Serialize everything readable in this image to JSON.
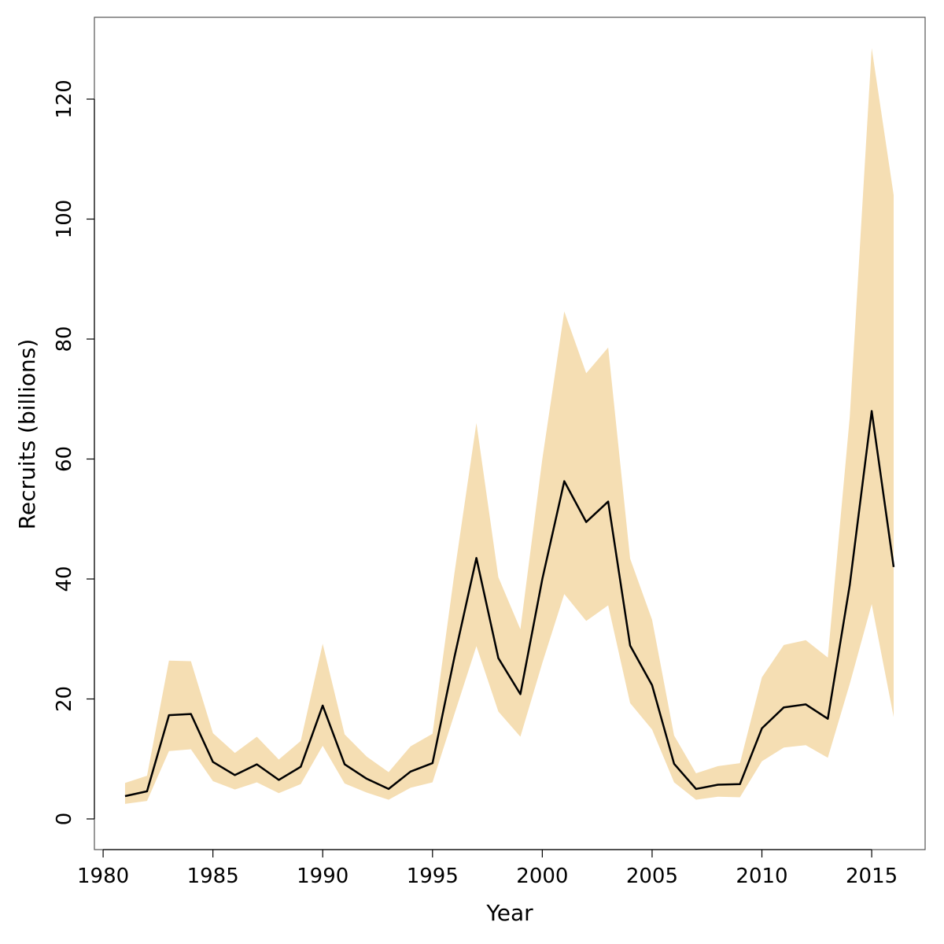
{
  "chart_data": {
    "type": "line",
    "title": "",
    "xlabel": "Year",
    "ylabel": "Recruits (billions)",
    "xlim": [
      1980,
      2016
    ],
    "ylim": [
      -5,
      133
    ],
    "x_ticks": [
      1980,
      1985,
      1990,
      1995,
      2000,
      2005,
      2010,
      2015
    ],
    "y_ticks": [
      0,
      20,
      40,
      60,
      80,
      100,
      120
    ],
    "colors": {
      "band": "#F5DEB3",
      "line": "#000000",
      "frame": "#555555"
    },
    "x": [
      1981,
      1982,
      1983,
      1984,
      1985,
      1986,
      1987,
      1988,
      1989,
      1990,
      1991,
      1992,
      1993,
      1994,
      1995,
      1996,
      1997,
      1998,
      1999,
      2000,
      2001,
      2002,
      2003,
      2004,
      2005,
      2006,
      2007,
      2008,
      2009,
      2010,
      2011,
      2012,
      2013,
      2014,
      2015,
      2016
    ],
    "series": [
      {
        "name": "Recruits",
        "values": [
          3.8,
          4.6,
          17.3,
          17.5,
          9.5,
          7.3,
          9.1,
          6.5,
          8.7,
          18.9,
          9.1,
          6.7,
          5.0,
          7.9,
          9.3,
          27.0,
          43.5,
          26.8,
          20.8,
          40.0,
          56.3,
          49.5,
          52.9,
          28.9,
          22.3,
          9.2,
          5.0,
          5.7,
          5.8,
          15.1,
          18.6,
          19.1,
          16.7,
          39.0,
          68.0,
          42.0
        ]
      },
      {
        "name": "Upper interval",
        "values": [
          6.0,
          7.2,
          26.4,
          26.3,
          14.3,
          11.0,
          13.7,
          9.9,
          13.0,
          29.2,
          14.1,
          10.4,
          7.8,
          12.1,
          14.2,
          41.0,
          66.0,
          40.3,
          31.6,
          60.0,
          84.6,
          74.3,
          78.6,
          43.4,
          33.2,
          13.9,
          7.6,
          8.8,
          9.3,
          23.6,
          29.0,
          29.8,
          26.9,
          67.0,
          128.5,
          104.0
        ]
      },
      {
        "name": "Lower interval",
        "values": [
          2.5,
          3.0,
          11.3,
          11.6,
          6.3,
          4.9,
          6.1,
          4.3,
          5.8,
          12.2,
          5.9,
          4.4,
          3.2,
          5.2,
          6.1,
          17.5,
          28.8,
          17.9,
          13.7,
          26.0,
          37.5,
          33.0,
          35.6,
          19.3,
          14.9,
          6.1,
          3.2,
          3.7,
          3.6,
          9.6,
          11.9,
          12.3,
          10.2,
          22.5,
          35.8,
          17.0
        ]
      }
    ]
  }
}
